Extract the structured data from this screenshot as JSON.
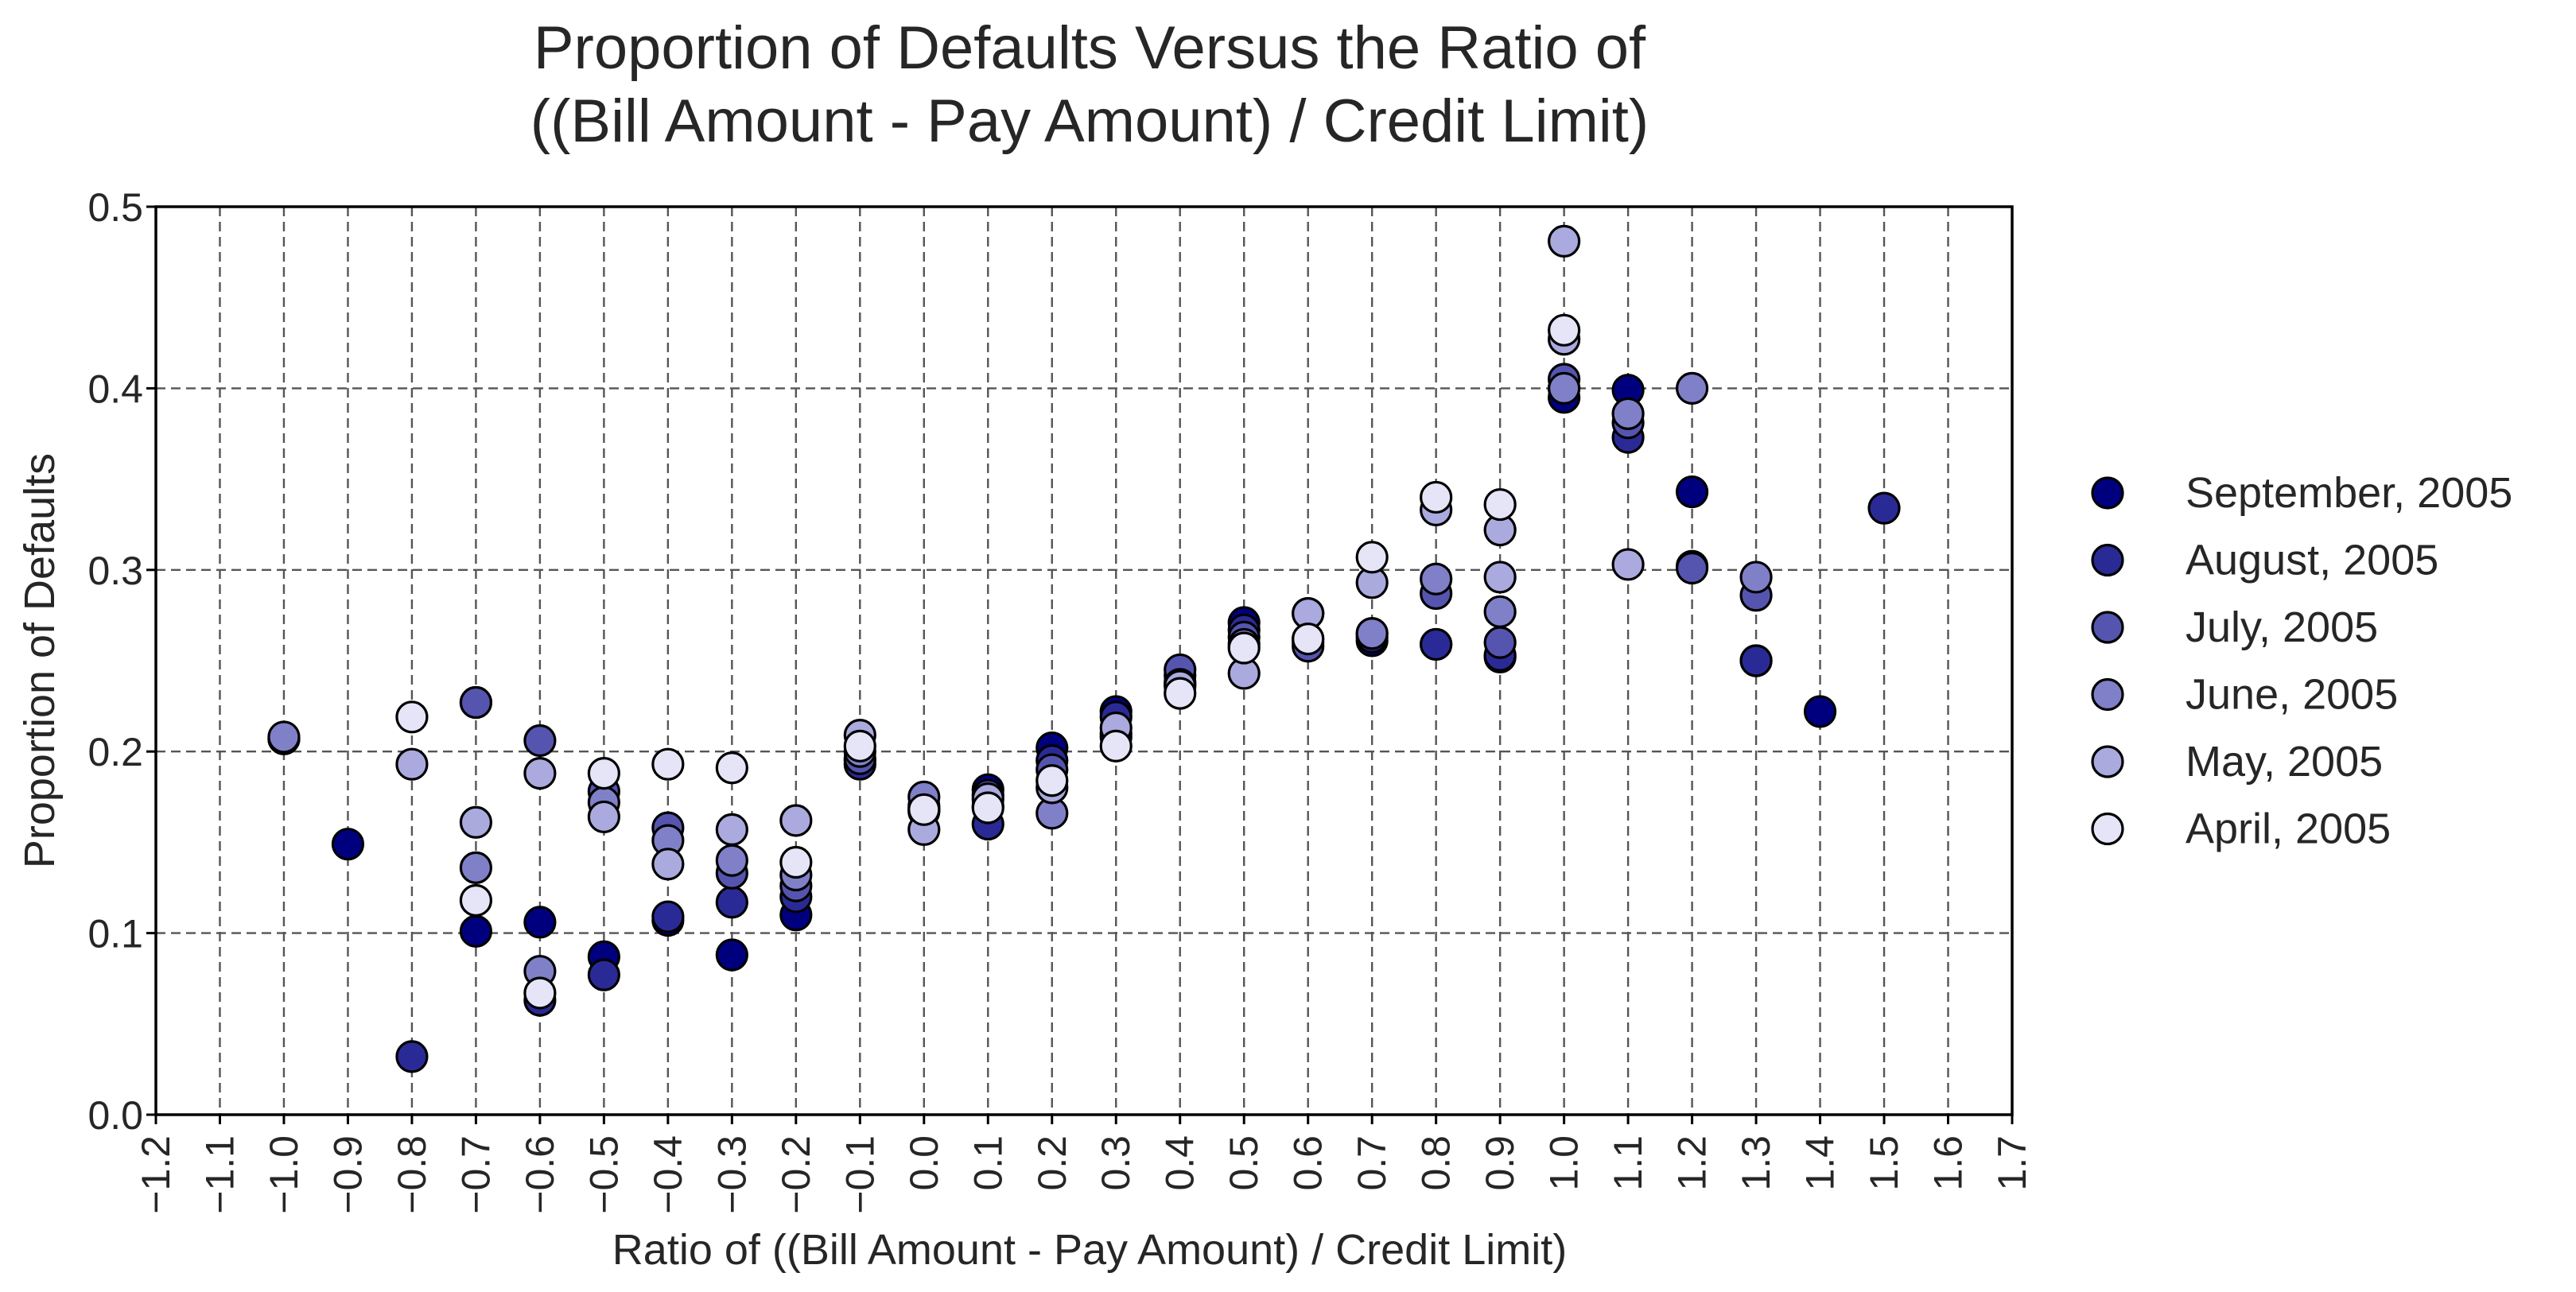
{
  "chart_data": {
    "type": "scatter",
    "title": [
      "Proportion of Defaults Versus the Ratio of",
      "((Bill Amount - Pay Amount) / Credit Limit)"
    ],
    "xlabel": "Ratio of ((Bill Amount - Pay Amount) / Credit Limit)",
    "ylabel": "Proportion of Defaults",
    "xlim": [
      -1.2,
      1.7
    ],
    "ylim": [
      0.0,
      0.5
    ],
    "xticks": [
      "−1.2",
      "−1.1",
      "−1.0",
      "−0.9",
      "−0.8",
      "−0.7",
      "−0.6",
      "−0.5",
      "−0.4",
      "−0.3",
      "−0.2",
      "−0.1",
      "0.0",
      "0.1",
      "0.2",
      "0.3",
      "0.4",
      "0.5",
      "0.6",
      "0.7",
      "0.8",
      "0.9",
      "1.0",
      "1.1",
      "1.2",
      "1.3",
      "1.4",
      "1.5",
      "1.6",
      "1.7"
    ],
    "yticks": [
      "0.0",
      "0.1",
      "0.2",
      "0.3",
      "0.4",
      "0.5"
    ],
    "grid": true,
    "grid_style": "dashed",
    "legend_position": "right",
    "series": [
      {
        "name": "September, 2005",
        "color": "#00007f",
        "x": [
          -1.0,
          -0.9,
          -0.7,
          -0.6,
          -0.5,
          -0.4,
          -0.3,
          -0.2,
          -0.1,
          0.0,
          0.1,
          0.2,
          0.3,
          0.4,
          0.5,
          0.6,
          0.7,
          0.8,
          0.9,
          1.0,
          1.1,
          1.2,
          1.3,
          1.4
        ],
        "y": [
          0.207,
          0.149,
          0.101,
          0.106,
          0.087,
          0.107,
          0.088,
          0.11,
          0.195,
          0.17,
          0.179,
          0.202,
          0.222,
          0.238,
          0.271,
          0.262,
          0.261,
          0.259,
          0.252,
          0.395,
          0.399,
          0.343,
          0.25,
          0.222
        ]
      },
      {
        "name": "August, 2005",
        "color": "#2a2a97",
        "x": [
          -1.0,
          -0.8,
          -0.7,
          -0.6,
          -0.5,
          -0.4,
          -0.3,
          -0.2,
          -0.1,
          0.0,
          0.1,
          0.2,
          0.3,
          0.4,
          0.5,
          0.6,
          0.7,
          0.8,
          0.9,
          1.0,
          1.1,
          1.2,
          1.3,
          1.5
        ],
        "y": [
          0.207,
          0.032,
          0.227,
          0.063,
          0.077,
          0.109,
          0.117,
          0.12,
          0.193,
          0.167,
          0.16,
          0.195,
          0.219,
          0.242,
          0.267,
          0.26,
          0.263,
          0.259,
          0.253,
          0.4,
          0.373,
          0.302,
          0.25,
          0.334
        ]
      },
      {
        "name": "July, 2005",
        "color": "#5555b0",
        "x": [
          -1.0,
          -0.7,
          -0.6,
          -0.5,
          -0.4,
          -0.3,
          -0.2,
          -0.1,
          0.0,
          0.1,
          0.2,
          0.3,
          0.4,
          0.5,
          0.6,
          0.7,
          0.8,
          0.9,
          1.0,
          1.1,
          1.2,
          1.3
        ],
        "y": [
          0.207,
          0.227,
          0.206,
          0.178,
          0.158,
          0.133,
          0.126,
          0.196,
          0.168,
          0.176,
          0.19,
          0.21,
          0.245,
          0.263,
          0.258,
          0.265,
          0.287,
          0.26,
          0.405,
          0.381,
          0.301,
          0.286
        ]
      },
      {
        "name": "June, 2005",
        "color": "#8080c8",
        "x": [
          -1.0,
          -0.7,
          -0.6,
          -0.5,
          -0.4,
          -0.3,
          -0.2,
          -0.1,
          0.0,
          0.1,
          0.2,
          0.3,
          0.4,
          0.5,
          0.6,
          0.7,
          0.8,
          0.9,
          1.0,
          1.1,
          1.2,
          1.3
        ],
        "y": [
          0.208,
          0.136,
          0.079,
          0.172,
          0.151,
          0.14,
          0.132,
          0.2,
          0.175,
          0.17,
          0.166,
          0.208,
          0.237,
          0.259,
          0.276,
          0.265,
          0.295,
          0.277,
          0.4,
          0.386,
          0.4,
          0.296
        ]
      },
      {
        "name": "May, 2005",
        "color": "#aaaadf",
        "x": [
          -0.8,
          -0.7,
          -0.6,
          -0.5,
          -0.4,
          -0.3,
          -0.2,
          -0.1,
          0.0,
          0.1,
          0.2,
          0.3,
          0.4,
          0.5,
          0.6,
          0.7,
          0.8,
          0.9,
          0.9,
          1.0,
          1.0,
          1.1
        ],
        "y": [
          0.193,
          0.161,
          0.188,
          0.164,
          0.138,
          0.157,
          0.162,
          0.209,
          0.157,
          0.174,
          0.18,
          0.213,
          0.236,
          0.243,
          0.276,
          0.293,
          0.333,
          0.296,
          0.322,
          0.427,
          0.481,
          0.303
        ]
      },
      {
        "name": "April, 2005",
        "color": "#e5e5f7",
        "x": [
          -0.8,
          -0.7,
          -0.6,
          -0.5,
          -0.4,
          -0.3,
          -0.2,
          -0.1,
          0.0,
          0.1,
          0.2,
          0.3,
          0.4,
          0.5,
          0.6,
          0.7,
          0.8,
          0.9,
          1.0
        ],
        "y": [
          0.219,
          0.118,
          0.067,
          0.188,
          0.193,
          0.191,
          0.139,
          0.203,
          0.168,
          0.169,
          0.184,
          0.203,
          0.232,
          0.257,
          0.262,
          0.307,
          0.34,
          0.336,
          0.432
        ]
      }
    ]
  }
}
